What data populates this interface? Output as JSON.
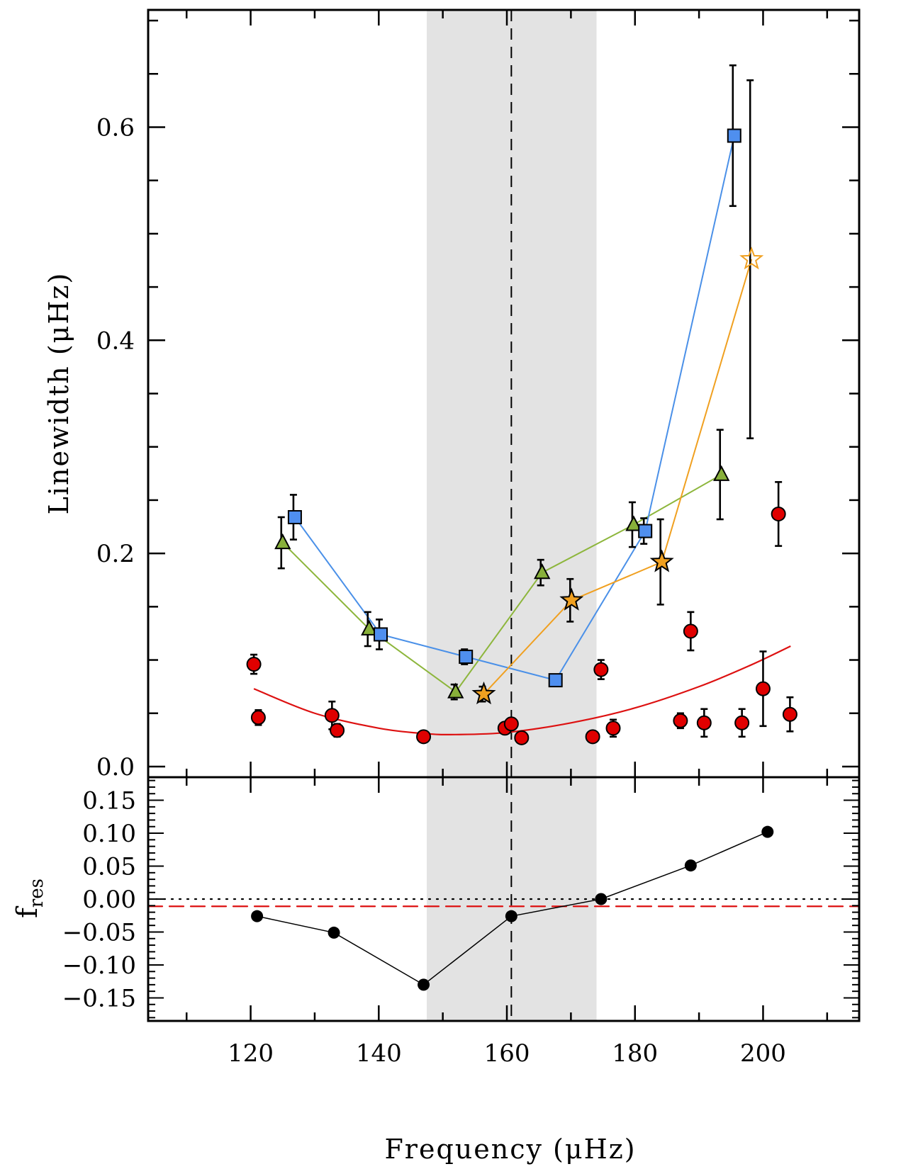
{
  "chart_data": [
    {
      "panel": "top",
      "type": "scatter",
      "xlabel": "Frequency (μHz)",
      "ylabel": "Linewidth (μHz)",
      "xlim": [
        104,
        215
      ],
      "ylim": [
        -0.01,
        0.71
      ],
      "yticks": [
        {
          "value": 0.0,
          "label": "0.0"
        },
        {
          "value": 0.2,
          "label": "0.2"
        },
        {
          "value": 0.4,
          "label": "0.4"
        },
        {
          "value": 0.6,
          "label": "0.6"
        }
      ],
      "shaded_region": {
        "x0": 147.5,
        "x1": 174.0,
        "color": "#e3e3e3"
      },
      "vertical_line": {
        "x": 160.7,
        "style": "dashed",
        "color": "#000000"
      },
      "series": [
        {
          "marker": "circle",
          "color": "#e00000",
          "connected": false,
          "points": [
            {
              "x": 120.5,
              "y": 0.096,
              "err": 0.009
            },
            {
              "x": 121.2,
              "y": 0.046,
              "err": 0.007
            },
            {
              "x": 132.7,
              "y": 0.048,
              "err": 0.013
            },
            {
              "x": 133.5,
              "y": 0.034,
              "err": 0.006
            },
            {
              "x": 147.0,
              "y": 0.028,
              "err": 0.002
            },
            {
              "x": 159.7,
              "y": 0.036,
              "err": 0.002
            },
            {
              "x": 160.7,
              "y": 0.04,
              "err": 0.002
            },
            {
              "x": 162.3,
              "y": 0.027,
              "err": 0.002
            },
            {
              "x": 173.4,
              "y": 0.028,
              "err": 0.002
            },
            {
              "x": 174.7,
              "y": 0.091,
              "err": 0.009
            },
            {
              "x": 176.6,
              "y": 0.036,
              "err": 0.008
            },
            {
              "x": 187.1,
              "y": 0.043,
              "err": 0.007
            },
            {
              "x": 188.7,
              "y": 0.127,
              "err": 0.018
            },
            {
              "x": 190.8,
              "y": 0.041,
              "err": 0.013
            },
            {
              "x": 196.7,
              "y": 0.041,
              "err": 0.013
            },
            {
              "x": 200.0,
              "y": 0.073,
              "err": 0.035
            },
            {
              "x": 202.4,
              "y": 0.237,
              "err": 0.03
            },
            {
              "x": 204.2,
              "y": 0.049,
              "err": 0.016
            }
          ]
        },
        {
          "marker": "triangle",
          "color": "#88b03a",
          "line_color": "#8db63c",
          "connected": true,
          "points": [
            {
              "x": 125.0,
              "y": 0.21,
              "err": 0.024
            },
            {
              "x": 138.5,
              "y": 0.129,
              "err": 0.016
            },
            {
              "x": 152.0,
              "y": 0.07,
              "err": 0.007
            },
            {
              "x": 165.5,
              "y": 0.182,
              "err": 0.012
            },
            {
              "x": 179.8,
              "y": 0.227,
              "err": 0.021
            },
            {
              "x": 193.5,
              "y": 0.274,
              "err": 0.042
            }
          ]
        },
        {
          "marker": "square",
          "color": "#4f8fef",
          "line_color": "#4a90e8",
          "connected": true,
          "points": [
            {
              "x": 126.9,
              "y": 0.234,
              "err": 0.021
            },
            {
              "x": 140.3,
              "y": 0.124,
              "err": 0.014
            },
            {
              "x": 153.6,
              "y": 0.103,
              "err": 0.007
            },
            {
              "x": 167.6,
              "y": 0.081,
              "err": 0.003
            },
            {
              "x": 181.6,
              "y": 0.221,
              "err": 0.012
            },
            {
              "x": 195.5,
              "y": 0.592,
              "err": 0.066
            }
          ]
        },
        {
          "marker": "star",
          "color": "#f0a020",
          "line_color": "#f0a020",
          "connected": true,
          "points": [
            {
              "x": 156.4,
              "y": 0.068,
              "err": 0.007,
              "filled": true
            },
            {
              "x": 170.1,
              "y": 0.156,
              "err": 0.02,
              "filled": true
            },
            {
              "x": 184.2,
              "y": 0.192,
              "err": 0.04,
              "filled": true
            },
            {
              "x": 198.2,
              "y": 0.476,
              "err": 0.168,
              "filled": false
            }
          ]
        }
      ],
      "fit_curve": {
        "color": "#dd1111",
        "points": [
          [
            120.5,
            0.073
          ],
          [
            130,
            0.05
          ],
          [
            140,
            0.036
          ],
          [
            147,
            0.031
          ],
          [
            152,
            0.03
          ],
          [
            160,
            0.032
          ],
          [
            170,
            0.041
          ],
          [
            180,
            0.055
          ],
          [
            190,
            0.075
          ],
          [
            198,
            0.095
          ],
          [
            204.3,
            0.113
          ]
        ]
      }
    },
    {
      "panel": "bottom",
      "type": "line",
      "xlabel": "Frequency (μHz)",
      "ylabel": "f",
      "ylabel_subscript": "res",
      "xlim": [
        104,
        215
      ],
      "ylim": [
        -0.185,
        0.185
      ],
      "xticks": [
        {
          "value": 120,
          "label": "120"
        },
        {
          "value": 140,
          "label": "140"
        },
        {
          "value": 160,
          "label": "160"
        },
        {
          "value": 180,
          "label": "180"
        },
        {
          "value": 200,
          "label": "200"
        }
      ],
      "yticks": [
        {
          "value": 0.15,
          "label": "0.15"
        },
        {
          "value": 0.1,
          "label": "0.10"
        },
        {
          "value": 0.05,
          "label": "0.05"
        },
        {
          "value": 0.0,
          "label": "0.00"
        },
        {
          "value": -0.05,
          "label": "−0.05"
        },
        {
          "value": -0.1,
          "label": "−0.10"
        },
        {
          "value": -0.15,
          "label": "−0.15"
        }
      ],
      "shaded_region": {
        "x0": 147.5,
        "x1": 174.0,
        "color": "#e3e3e3"
      },
      "vertical_line": {
        "x": 160.7,
        "style": "dashed",
        "color": "#000000"
      },
      "reference_lines": [
        {
          "y": 0.0,
          "style": "dotted",
          "color": "#000000"
        },
        {
          "y": -0.011,
          "style": "dashed",
          "color": "#dd1111"
        }
      ],
      "series": [
        {
          "marker": "circle",
          "color": "#000000",
          "connected": true,
          "points": [
            {
              "x": 121.0,
              "y": -0.026
            },
            {
              "x": 133.0,
              "y": -0.051
            },
            {
              "x": 147.0,
              "y": -0.13
            },
            {
              "x": 160.7,
              "y": -0.026
            },
            {
              "x": 174.7,
              "y": 0.0
            },
            {
              "x": 188.7,
              "y": 0.051
            },
            {
              "x": 200.7,
              "y": 0.102
            }
          ]
        }
      ]
    }
  ]
}
